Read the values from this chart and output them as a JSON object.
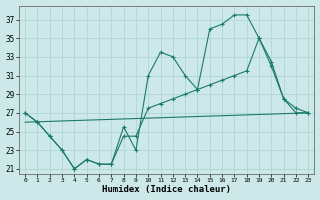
{
  "xlabel": "Humidex (Indice chaleur)",
  "bg_color": "#cde8e8",
  "grid_color": "#b0d4d4",
  "line_color": "#1a7a6a",
  "xlim": [
    -0.5,
    23.5
  ],
  "ylim": [
    20.5,
    38.5
  ],
  "yticks": [
    21,
    23,
    25,
    27,
    29,
    31,
    33,
    35,
    37
  ],
  "xticks": [
    0,
    1,
    2,
    3,
    4,
    5,
    6,
    7,
    8,
    9,
    10,
    11,
    12,
    13,
    14,
    15,
    16,
    17,
    18,
    19,
    20,
    21,
    22,
    23
  ],
  "line1_marked": {
    "x": [
      0,
      1,
      2,
      3,
      4,
      5,
      6,
      7,
      8,
      9,
      10,
      11,
      12,
      13,
      14,
      15,
      16,
      17,
      18,
      19,
      20,
      21,
      22,
      23
    ],
    "y": [
      27,
      26,
      24.5,
      23,
      21,
      22,
      21.5,
      21.5,
      25.5,
      23,
      31,
      33.5,
      33,
      31,
      29.5,
      36,
      36.5,
      37.5,
      37.5,
      35,
      32,
      28.5,
      27,
      27
    ]
  },
  "line2_straight": {
    "x": [
      0,
      23
    ],
    "y": [
      26,
      27
    ]
  },
  "line3_marked": {
    "x": [
      0,
      1,
      2,
      3,
      4,
      5,
      6,
      7,
      8,
      9,
      10,
      11,
      12,
      13,
      14,
      15,
      16,
      17,
      18,
      19,
      20,
      21,
      22,
      23
    ],
    "y": [
      27,
      26,
      24.5,
      23,
      21,
      22,
      21.5,
      21.5,
      24.5,
      24.5,
      27.5,
      28,
      28.5,
      29,
      29.5,
      30,
      30.5,
      31,
      31.5,
      35,
      32.5,
      28.5,
      27.5,
      27
    ]
  }
}
